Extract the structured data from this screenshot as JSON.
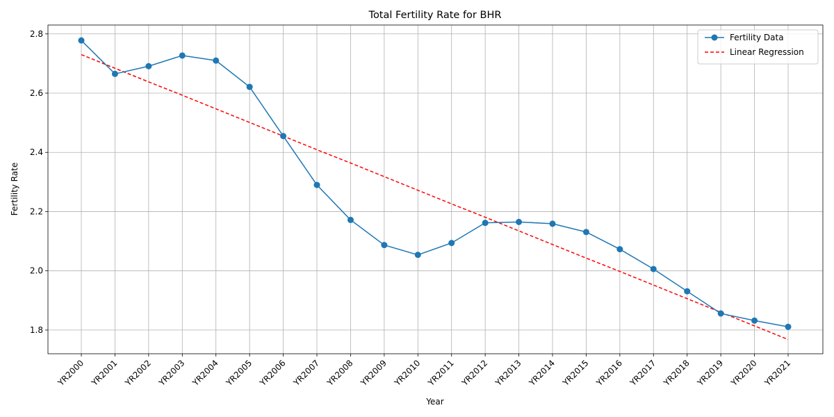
{
  "chart_data": {
    "type": "line",
    "title": "Total Fertility Rate for BHR",
    "xlabel": "Year",
    "ylabel": "Fertility Rate",
    "categories": [
      "YR2000",
      "YR2001",
      "YR2002",
      "YR2003",
      "YR2004",
      "YR2005",
      "YR2006",
      "YR2007",
      "YR2008",
      "YR2009",
      "YR2010",
      "YR2011",
      "YR2012",
      "YR2013",
      "YR2014",
      "YR2015",
      "YR2016",
      "YR2017",
      "YR2018",
      "YR2019",
      "YR2020",
      "YR2021"
    ],
    "series": [
      {
        "name": "Fertility Data",
        "style": "solid line with circle markers",
        "color": "#1f77b4",
        "values": [
          2.778,
          2.665,
          2.691,
          2.727,
          2.71,
          2.621,
          2.455,
          2.29,
          2.172,
          2.087,
          2.054,
          2.094,
          2.162,
          2.165,
          2.159,
          2.131,
          2.073,
          2.006,
          1.931,
          1.856,
          1.832,
          1.811
        ]
      },
      {
        "name": "Linear Regression",
        "style": "dashed line",
        "color": "#ff0000",
        "values": [
          2.73,
          2.684,
          2.638,
          2.593,
          2.547,
          2.501,
          2.455,
          2.409,
          2.364,
          2.318,
          2.272,
          2.226,
          2.181,
          2.135,
          2.089,
          2.043,
          1.998,
          1.952,
          1.906,
          1.86,
          1.814,
          1.768
        ]
      }
    ],
    "yticks": [
      1.8,
      2.0,
      2.2,
      2.4,
      2.6,
      2.8
    ],
    "ylim": [
      1.72,
      2.83
    ],
    "grid": true,
    "legend_position": "top-right"
  }
}
